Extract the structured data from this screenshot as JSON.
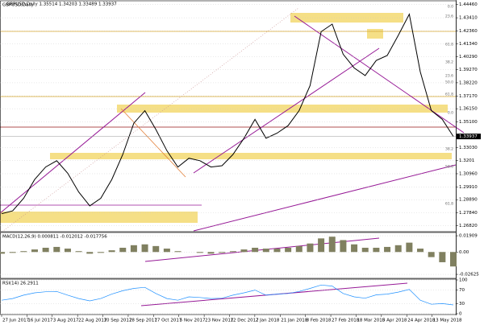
{
  "header": "GBPUSD,Daily 1.35514 1.34203 1.33489 1.33937",
  "chart_data": [
    {
      "type": "line",
      "name": "GBPUSD,Daily",
      "color": "#000000",
      "values": [
        1.2777,
        1.28,
        1.29,
        1.305,
        1.315,
        1.32,
        1.31,
        1.295,
        1.284,
        1.29,
        1.305,
        1.325,
        1.35,
        1.3599,
        1.345,
        1.328,
        1.315,
        1.322,
        1.32,
        1.315,
        1.316,
        1.325,
        1.338,
        1.353,
        1.338,
        1.342,
        1.348,
        1.36,
        1.38,
        1.423,
        1.429,
        1.405,
        1.394,
        1.388,
        1.4,
        1.404,
        1.42,
        1.437,
        1.391,
        1.36,
        1.353,
        1.33937
      ],
      "current": {
        "value": 1.33937,
        "label": "1.33937"
      },
      "ylim": [
        1.264,
        1.447
      ],
      "yticks": [
        {
          "value": 1.4446,
          "label": "1.44460"
        },
        {
          "value": 1.4341,
          "label": "1.43410"
        },
        {
          "value": 1.4236,
          "label": "1.42360"
        },
        {
          "value": 1.4134,
          "label": "1.41340"
        },
        {
          "value": 1.4029,
          "label": "1.40290"
        },
        {
          "value": 1.3927,
          "label": "1.39270"
        },
        {
          "value": 1.3822,
          "label": "1.38220"
        },
        {
          "value": 1.3717,
          "label": "1.37170"
        },
        {
          "value": 1.3615,
          "label": "1.36150"
        },
        {
          "value": 1.351,
          "label": "1.35100"
        },
        {
          "value": 1.3303,
          "label": "1.33030"
        },
        1.3201,
        {
          "value": 1.3096,
          "label": "1.30960"
        },
        {
          "value": 1.2991,
          "label": "1.29910"
        },
        {
          "value": 1.2889,
          "label": "1.28890"
        },
        {
          "value": 1.2784,
          "label": "1.27840"
        },
        {
          "value": 1.2682,
          "label": "1.26820"
        }
      ],
      "grid": true
    },
    {
      "type": "histogram",
      "name": "MACD(12,26,9) 0.000811 -0.012012 -0.017756",
      "color": "#808060",
      "values": [
        -0.002,
        -0.001,
        0.001,
        0.003,
        0.005,
        0.006,
        0.004,
        0.001,
        -0.002,
        -0.001,
        0.002,
        0.005,
        0.008,
        0.009,
        0.007,
        0.004,
        0.001,
        0.0,
        -0.001,
        -0.002,
        -0.001,
        0.001,
        0.003,
        0.005,
        0.004,
        0.004,
        0.005,
        0.007,
        0.01,
        0.016,
        0.018,
        0.014,
        0.009,
        0.005,
        0.005,
        0.006,
        0.008,
        0.011,
        0.004,
        -0.006,
        -0.012,
        -0.017
      ],
      "ylim": [
        -0.03,
        0.022
      ],
      "yticks": [
        0.01909,
        {
          "value": 0,
          "label": "0.00"
        },
        -0.02625
      ]
    },
    {
      "type": "line",
      "name": "RSI(14) 26.2911",
      "color": "#1e90ff",
      "values": [
        40,
        45,
        55,
        62,
        65,
        66,
        55,
        45,
        38,
        45,
        58,
        68,
        75,
        78,
        60,
        45,
        40,
        50,
        48,
        45,
        46,
        55,
        62,
        70,
        55,
        58,
        60,
        66,
        75,
        85,
        82,
        60,
        50,
        46,
        56,
        58,
        64,
        72,
        40,
        28,
        30,
        26.2911
      ],
      "ylim": [
        0,
        100
      ],
      "yticks": [
        100,
        70,
        30,
        0
      ]
    }
  ],
  "xlabels": [
    "27 Jun 2017",
    "16 Jul 2017",
    "3 Aug 2017",
    "22 Aug 2017",
    "10 Sep 2017",
    "28 Sep 2017",
    "17 Oct 2017",
    "5 Nov 2017",
    "23 Nov 2017",
    "12 Dec 2017",
    "2 Jan 2018",
    "21 Jan 2018",
    "8 Feb 2018",
    "27 Feb 2018",
    "18 Mar 2018",
    "5 Apr 2018",
    "24 Apr 2018",
    "13 May 2018"
  ],
  "annotations": [
    "0.0",
    "23.6",
    "61.8",
    "38.2",
    "23.6",
    "50.0",
    "61.8",
    "0.0",
    "38.2",
    "50.0",
    "61.8"
  ]
}
